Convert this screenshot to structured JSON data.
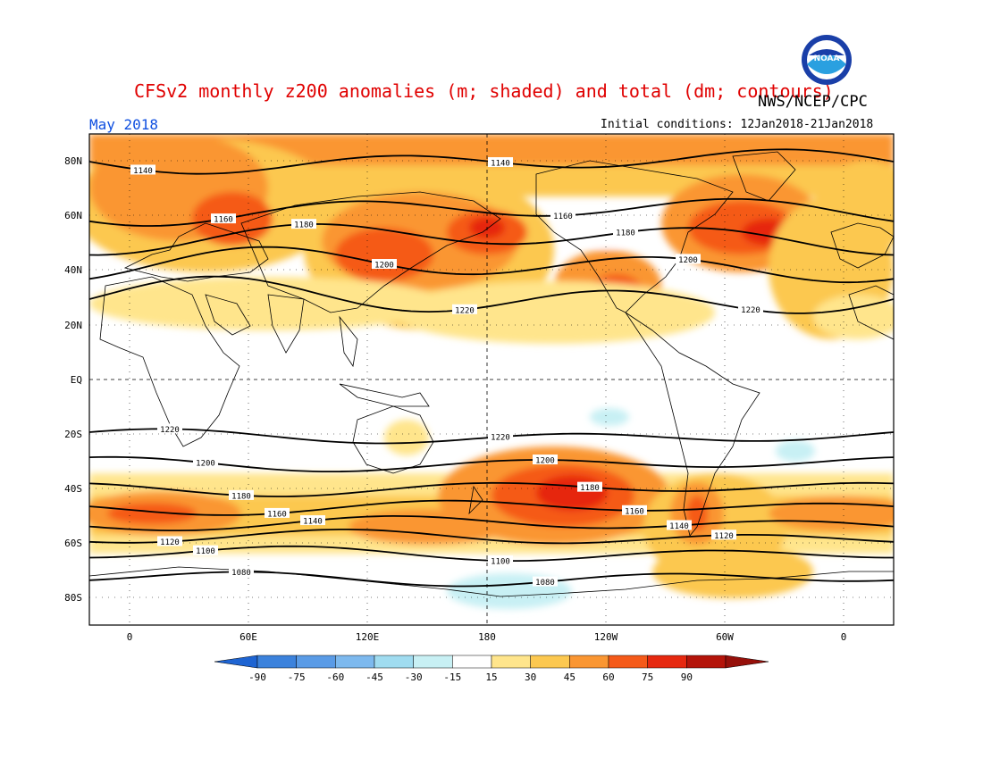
{
  "title": "CFSv2 monthly z200 anomalies (m; shaded) and total (dm; contours)",
  "agency": "NWS/NCEP/CPC",
  "logo_text": "NOAA",
  "month_label": "May 2018",
  "initial_conditions": "Initial conditions: 12Jan2018-21Jan2018",
  "lat_ticks": [
    "80N",
    "60N",
    "40N",
    "20N",
    "EQ",
    "20S",
    "40S",
    "60S",
    "80S"
  ],
  "lon_ticks": [
    "0",
    "60E",
    "120E",
    "180",
    "120W",
    "60W",
    "0"
  ],
  "colorbar": {
    "labels": [
      "-90",
      "-75",
      "-60",
      "-45",
      "-30",
      "-15",
      "15",
      "30",
      "45",
      "60",
      "75",
      "90"
    ],
    "colors": [
      "#1e64d2",
      "#3c82dc",
      "#5a9be6",
      "#7db9ee",
      "#a0dcf0",
      "#c8f0f4",
      "#ffffff",
      "#ffe58c",
      "#fcc850",
      "#fa9632",
      "#f55a19",
      "#e6280f",
      "#b4140a",
      "#96100a"
    ]
  },
  "contours": {
    "north": [
      {
        "value": "1140",
        "lat": 80
      },
      {
        "value": "1160",
        "lat": 62
      },
      {
        "value": "1180",
        "lat": 52
      },
      {
        "value": "1200",
        "lat": 42
      },
      {
        "value": "1220",
        "lat": 30
      }
    ],
    "south": [
      {
        "value": "1220",
        "lat": -21
      },
      {
        "value": "1200",
        "lat": -31
      },
      {
        "value": "1180",
        "lat": -40
      },
      {
        "value": "1160",
        "lat": -47
      },
      {
        "value": "1140",
        "lat": -53
      },
      {
        "value": "1120",
        "lat": -58
      },
      {
        "value": "1100",
        "lat": -64
      },
      {
        "value": "1080",
        "lat": -73
      }
    ]
  },
  "colors": {
    "title": "#e00000",
    "month": "#1050e0"
  }
}
